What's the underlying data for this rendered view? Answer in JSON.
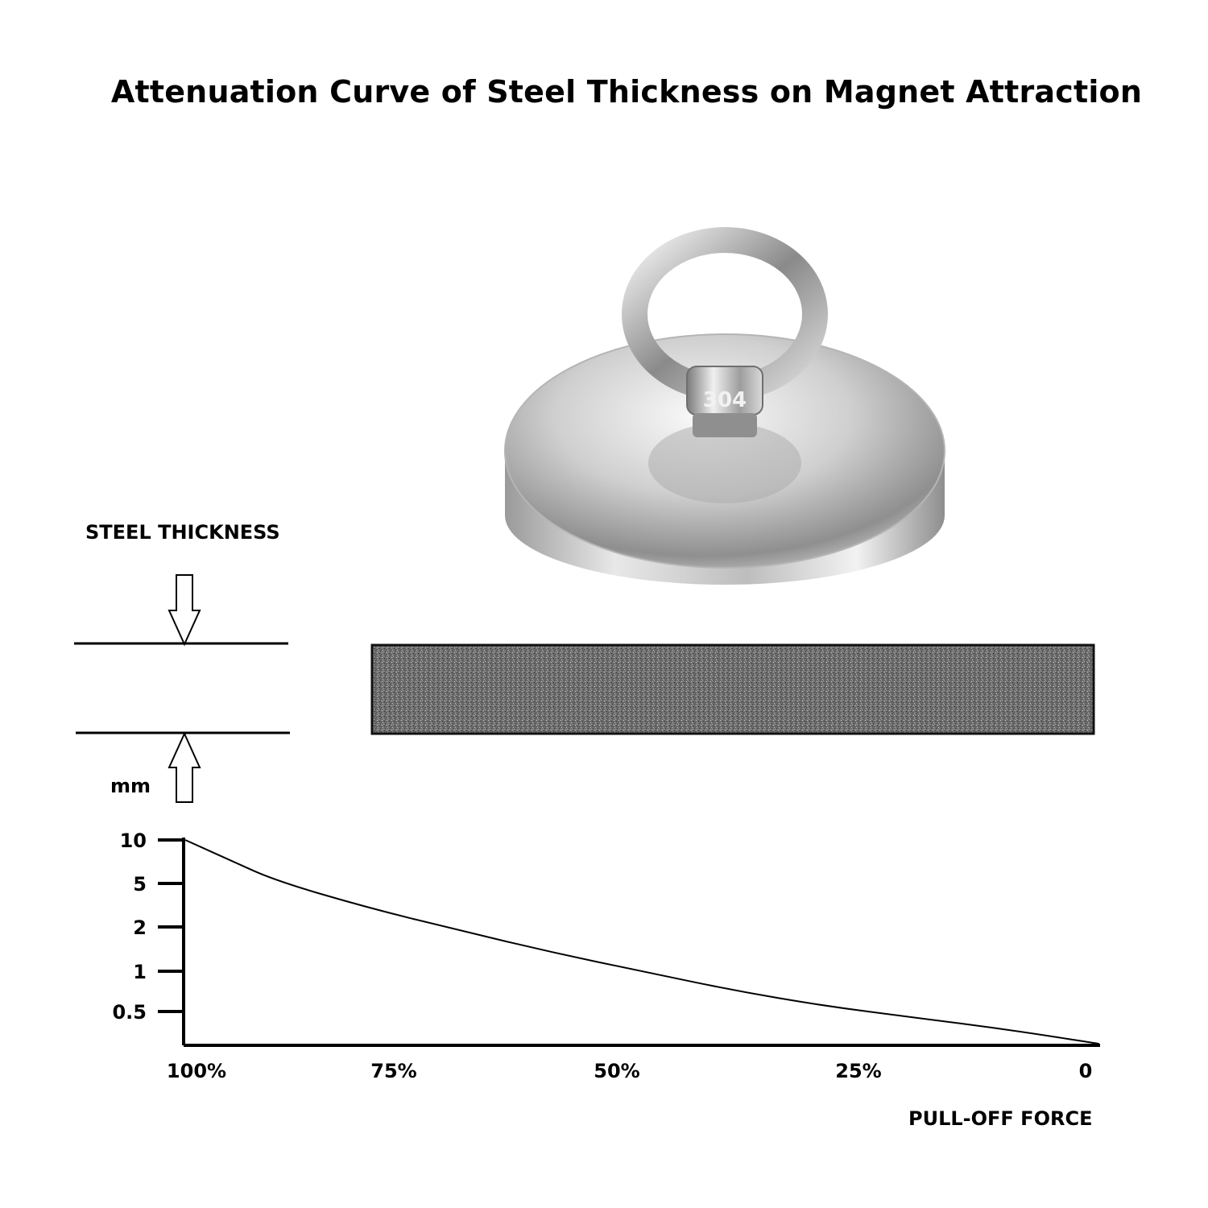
{
  "title": "Attenuation Curve of Steel Thickness on Magnet Attraction",
  "steel_thickness_label": "STEEL THICKNESS",
  "magnet_stamp": "304",
  "chart_data": {
    "type": "line",
    "title": "Attenuation Curve of Steel Thickness on Magnet Attraction",
    "xlabel": "PULL-OFF FORCE",
    "ylabel": "mm",
    "x_tick_labels": [
      "100%",
      "75%",
      "50%",
      "25%",
      "0"
    ],
    "y_tick_labels": [
      "10",
      "5",
      "2",
      "1",
      "0.5"
    ],
    "x_reversed": true,
    "grid": false,
    "series": [
      {
        "x": [
          100,
          95,
          90,
          80,
          70,
          60,
          50,
          40,
          30,
          20,
          10,
          0
        ],
        "y": [
          10,
          7.2,
          5.2,
          3.0,
          1.9,
          1.35,
          1.0,
          0.72,
          0.55,
          0.42,
          0.3,
          0.2
        ]
      }
    ]
  }
}
